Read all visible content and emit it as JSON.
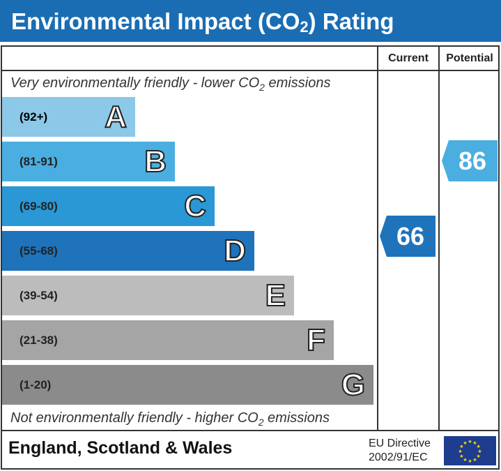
{
  "title_main": "Environmental Impact (CO",
  "title_sub": "2",
  "title_end": ") Rating",
  "header": {
    "current": "Current",
    "potential": "Potential"
  },
  "top_note": {
    "pre": "Very environmentally friendly - lower CO",
    "sub": "2",
    "post": " emissions"
  },
  "bottom_note": {
    "pre": "Not environmentally friendly - higher CO",
    "sub": "2",
    "post": " emissions"
  },
  "chart_data": {
    "type": "bar",
    "bands": [
      {
        "letter": "A",
        "range": "(92+)",
        "color": "#8cc8e8"
      },
      {
        "letter": "B",
        "range": "(81-91)",
        "color": "#4aaee0"
      },
      {
        "letter": "C",
        "range": "(69-80)",
        "color": "#2998d4"
      },
      {
        "letter": "D",
        "range": "(55-68)",
        "color": "#1e73bb"
      },
      {
        "letter": "E",
        "range": "(39-54)",
        "color": "#bcbcbc"
      },
      {
        "letter": "F",
        "range": "(21-38)",
        "color": "#a5a5a5"
      },
      {
        "letter": "G",
        "range": "(1-20)",
        "color": "#8b8b8b"
      }
    ],
    "current": {
      "value": "66",
      "band": "D",
      "color": "#1e73bb"
    },
    "potential": {
      "value": "86",
      "band": "B",
      "color": "#4aaee0"
    }
  },
  "footer": {
    "region": "England, Scotland & Wales",
    "directive_line1": "EU Directive",
    "directive_line2": "2002/91/EC"
  }
}
